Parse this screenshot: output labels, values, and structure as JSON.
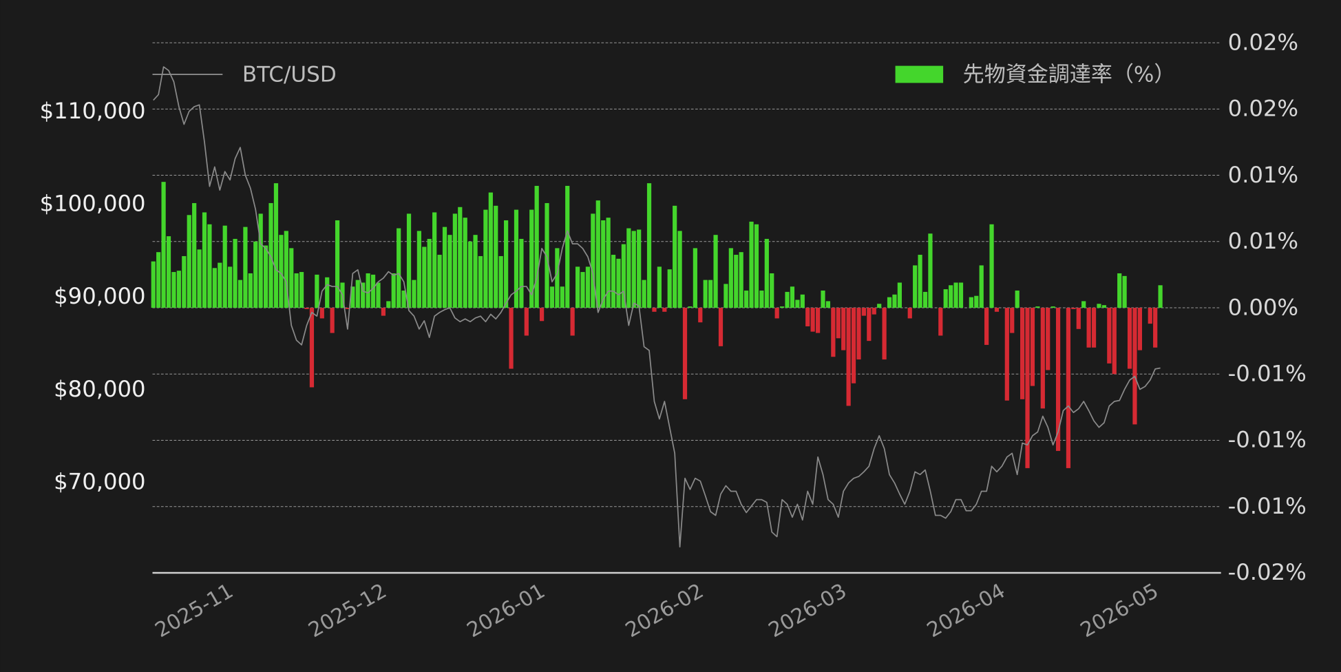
{
  "chart_data": {
    "type": "bar",
    "categories": [
      null,
      null,
      null,
      null,
      null,
      null,
      null,
      null,
      null,
      null,
      null,
      null,
      null,
      null,
      null,
      "2025-11",
      null,
      null,
      null,
      null,
      null,
      null,
      null,
      null,
      null,
      null,
      null,
      null,
      null,
      null,
      null,
      null,
      null,
      null,
      null,
      null,
      null,
      null,
      null,
      null,
      null,
      null,
      null,
      null,
      null,
      "2025-12",
      null,
      null,
      null,
      null,
      null,
      null,
      null,
      null,
      null,
      null,
      null,
      null,
      null,
      null,
      null,
      null,
      null,
      null,
      null,
      null,
      null,
      null,
      null,
      null,
      null,
      null,
      null,
      null,
      null,
      null,
      "2026-01",
      null,
      null,
      null,
      null,
      null,
      null,
      null,
      null,
      null,
      null,
      null,
      null,
      null,
      null,
      null,
      null,
      null,
      null,
      null,
      null,
      null,
      null,
      null,
      null,
      null,
      null,
      null,
      null,
      null,
      null,
      "2026-02",
      null,
      null,
      null,
      null,
      null,
      null,
      null,
      null,
      null,
      null,
      null,
      null,
      null,
      null,
      null,
      null,
      null,
      null,
      null,
      null,
      null,
      null,
      null,
      null,
      null,
      null,
      null,
      "2026-03",
      null,
      null,
      null,
      null,
      null,
      null,
      null,
      null,
      null,
      null,
      null,
      null,
      null,
      null,
      null,
      null,
      null,
      null,
      null,
      null,
      null,
      null,
      null,
      null,
      null,
      null,
      null,
      null,
      null,
      null,
      "2026-04",
      null,
      null,
      null,
      null,
      null,
      null,
      null,
      null,
      null,
      null,
      null,
      null,
      null,
      null,
      null,
      null,
      null,
      null,
      null,
      null,
      null,
      null,
      null,
      null,
      null,
      null,
      null,
      null,
      null,
      "2026-05",
      null
    ],
    "series": [
      {
        "name": "BTC/USD",
        "type": "line",
        "color": "#8a8a8a",
        "axis": "y",
        "values": [
          111300,
          111900,
          114900,
          114500,
          113300,
          110600,
          108700,
          110100,
          110600,
          110800,
          106800,
          102000,
          104100,
          101600,
          103600,
          102700,
          105000,
          106200,
          103200,
          101800,
          99500,
          95800,
          95300,
          94400,
          93000,
          92600,
          91700,
          87000,
          85400,
          84900,
          87000,
          88400,
          88000,
          90700,
          91400,
          91200,
          91200,
          90300,
          86600,
          92600,
          93000,
          90700,
          90500,
          91000,
          91700,
          92100,
          92800,
          92400,
          92600,
          91700,
          88600,
          88000,
          86600,
          87500,
          85700,
          88000,
          88400,
          88700,
          88900,
          87800,
          87400,
          87700,
          87400,
          87800,
          88000,
          87400,
          88200,
          87700,
          88400,
          89400,
          90300,
          90700,
          91200,
          91200,
          90300,
          92100,
          95300,
          94400,
          91700,
          92600,
          95300,
          97200,
          95800,
          95800,
          95300,
          94400,
          92600,
          88400,
          89800,
          90700,
          90700,
          90300,
          90700,
          87000,
          89400,
          89100,
          84700,
          84300,
          78800,
          76900,
          78800,
          76000,
          73200,
          63100,
          70500,
          69300,
          70500,
          70200,
          68600,
          66900,
          66500,
          68800,
          69700,
          69100,
          69100,
          67700,
          66800,
          67500,
          68200,
          68200,
          67900,
          64700,
          64200,
          68200,
          67700,
          66300,
          67700,
          66000,
          69100,
          67700,
          72800,
          70900,
          68200,
          67700,
          66300,
          69100,
          70000,
          70500,
          70700,
          71200,
          71800,
          73700,
          75100,
          73700,
          70900,
          70000,
          68800,
          67700,
          69100,
          71200,
          70900,
          71400,
          69100,
          66500,
          66500,
          66200,
          66900,
          68200,
          68200,
          67000,
          67000,
          67700,
          69100,
          69100,
          71800,
          71200,
          71800,
          72800,
          73200,
          70900,
          74300,
          74100,
          75100,
          75500,
          77200,
          76000,
          74100,
          75500,
          77800,
          78300,
          77600,
          78000,
          78800,
          77800,
          76700,
          76000,
          76500,
          78300,
          78800,
          78900,
          80100,
          81100,
          81500,
          80100,
          80400,
          81100,
          82300,
          82400
        ]
      },
      {
        "name": "先物資金調達率（%）",
        "type": "bar",
        "color": "#44d62c",
        "negative_color": "#d62a33",
        "axis": "y2",
        "values": [
          0.0035,
          0.0042,
          0.0095,
          0.0054,
          0.0027,
          0.0028,
          0.0039,
          0.007,
          0.0079,
          0.0044,
          0.0072,
          0.0063,
          0.003,
          0.0034,
          0.0062,
          0.0031,
          0.0052,
          0.0021,
          0.0061,
          0.0026,
          0.005,
          0.0071,
          0.0047,
          0.0079,
          0.0094,
          0.0055,
          0.0058,
          0.0045,
          0.0026,
          0.0027,
          -0.0001,
          -0.006,
          0.0025,
          -0.0008,
          0.0023,
          -0.0019,
          0.0066,
          0.0019,
          -0.0001,
          0.0016,
          0.0021,
          0.0019,
          0.0026,
          0.0025,
          0.0019,
          -0.0006,
          0.0005,
          0.0026,
          0.006,
          0.0013,
          0.0071,
          0.0021,
          0.0058,
          0.0046,
          0.0052,
          0.0072,
          0.004,
          0.0061,
          0.0055,
          0.0071,
          0.0076,
          0.0068,
          0.005,
          0.0055,
          0.0039,
          0.0074,
          0.0087,
          0.0077,
          0.0039,
          0.0066,
          -0.0046,
          0.0074,
          0.0052,
          -0.0021,
          0.0074,
          0.0092,
          -0.001,
          0.0079,
          0.0016,
          0.0045,
          0.0016,
          0.0092,
          -0.0021,
          0.0031,
          0.0027,
          0.0031,
          0.0071,
          0.0081,
          0.0066,
          0.0068,
          0.004,
          0.0037,
          0.0048,
          0.006,
          0.0058,
          0.0059,
          0.0021,
          0.0094,
          -0.0003,
          0.0031,
          -0.0003,
          0.0029,
          0.0077,
          0.0058,
          -0.0069,
          0.0001,
          0.0045,
          -0.0011,
          0.0021,
          0.0021,
          0.0055,
          -0.0029,
          0.0018,
          0.0045,
          0.004,
          0.0042,
          0.0013,
          0.0065,
          0.0063,
          0.0013,
          0.0052,
          0.0026,
          -0.0008,
          0.0001,
          0.0012,
          0.0016,
          0.0006,
          0.001,
          -0.0014,
          -0.0018,
          -0.0019,
          0.0013,
          0.0005,
          -0.0037,
          -0.0023,
          -0.0032,
          -0.0074,
          -0.0057,
          -0.0039,
          -0.0006,
          -0.0025,
          -0.0005,
          0.0003,
          -0.0039,
          0.0008,
          0.001,
          0.0019,
          0,
          -0.0008,
          0.0032,
          0.004,
          0.0012,
          0.0056,
          0,
          -0.0021,
          0.0014,
          0.0017,
          0.0019,
          0.0019,
          0,
          0.0008,
          0.0009,
          0.0032,
          -0.0028,
          0.0063,
          -0.0003,
          0,
          -0.007,
          -0.0019,
          0.0013,
          -0.0069,
          -0.0121,
          -0.0059,
          0.0001,
          -0.0076,
          -0.0047,
          0.0001,
          -0.0108,
          0,
          -0.0121,
          -0.0001,
          -0.0016,
          0.0005,
          -0.003,
          -0.003,
          0.0003,
          0.0002,
          -0.0042,
          -0.005,
          0.0026,
          0.0024,
          -0.0046,
          -0.0088,
          -0.0032,
          0,
          -0.0012,
          -0.003,
          0.0017
        ]
      }
    ],
    "ylim": [
      60300,
      117500
    ],
    "yticks": [
      {
        "value": 70000,
        "label": "$70,000"
      },
      {
        "value": 80000,
        "label": "$80,000"
      },
      {
        "value": 90000,
        "label": "$90,000"
      },
      {
        "value": 100000,
        "label": "$100,000"
      },
      {
        "value": 110000,
        "label": "$110,000"
      }
    ],
    "y2lim": [
      -0.02,
      0.02
    ],
    "y2ticks": [
      {
        "value": -0.02,
        "label": "-0.02%"
      },
      {
        "value": -0.015,
        "label": "-0.01%"
      },
      {
        "value": -0.01,
        "label": "-0.01%"
      },
      {
        "value": -0.005,
        "label": "-0.01%"
      },
      {
        "value": 0,
        "label": "0.00%"
      },
      {
        "value": 0.005,
        "label": "0.01%"
      },
      {
        "value": 0.01,
        "label": "0.01%"
      },
      {
        "value": 0.015,
        "label": "0.02%"
      },
      {
        "value": 0.02,
        "label": "0.02%"
      }
    ],
    "grid": true
  }
}
